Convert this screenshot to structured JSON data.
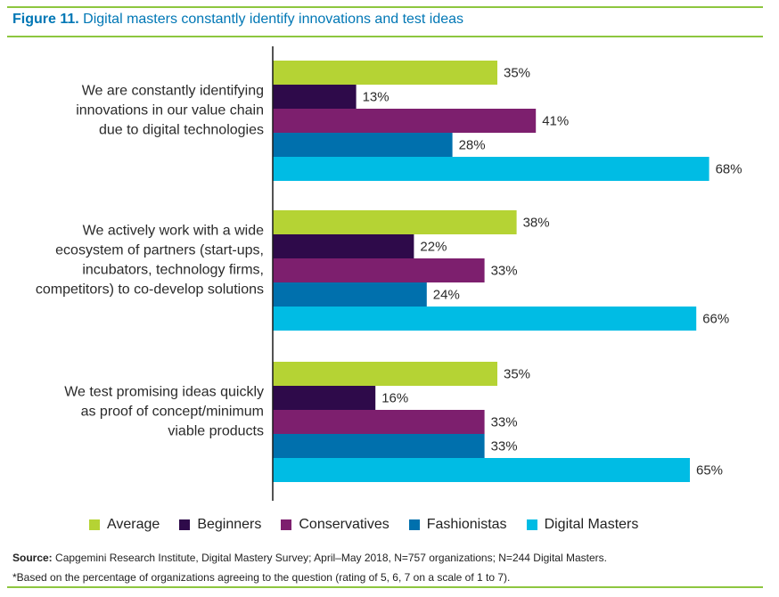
{
  "header": {
    "figure_label": "Figure 11.",
    "title": "Digital masters constantly identify innovations and test ideas"
  },
  "colors": {
    "rule": "#8dc63f",
    "title_label": "#0077b5",
    "title_text": "#0077b5"
  },
  "chart_data": {
    "type": "bar",
    "orientation": "horizontal",
    "value_suffix": "%",
    "xlim": [
      0,
      100
    ],
    "categories": [
      [
        "We are constantly identifying",
        "innovations in our value chain",
        "due to digital technologies"
      ],
      [
        "We actively work with a wide",
        "ecosystem of partners (start-ups,",
        "incubators, technology firms,",
        "competitors) to co-develop solutions"
      ],
      [
        "We test promising ideas quickly",
        "as proof of concept/minimum",
        "viable products"
      ]
    ],
    "series": [
      {
        "name": "Average",
        "color": "#b5d334",
        "values": [
          35,
          38,
          35
        ]
      },
      {
        "name": "Beginners",
        "color": "#2e0a4a",
        "values": [
          13,
          22,
          16
        ]
      },
      {
        "name": "Conservatives",
        "color": "#7d1f6e",
        "values": [
          41,
          33,
          33
        ]
      },
      {
        "name": "Fashionistas",
        "color": "#0070ad",
        "values": [
          28,
          24,
          33
        ]
      },
      {
        "name": "Digital Masters",
        "color": "#00bce4",
        "values": [
          68,
          66,
          65
        ]
      }
    ],
    "legend_position": "bottom",
    "grid": false
  },
  "footer": {
    "source_label": "Source:",
    "source_text": " Capgemini Research Institute, Digital Mastery Survey; April–May 2018, N=757 organizations; N=244 Digital Masters.",
    "footnote": "*Based on the percentage of organizations agreeing to the question (rating of 5, 6, 7 on a scale of 1 to 7)."
  }
}
